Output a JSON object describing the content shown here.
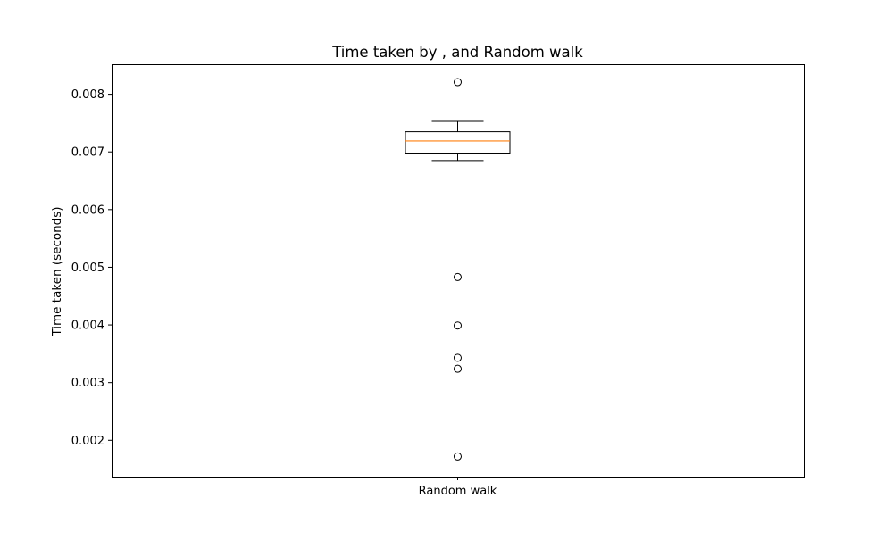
{
  "chart_data": {
    "type": "box",
    "title": "Time taken by , and Random walk",
    "xlabel": "",
    "ylabel": "Time taken (seconds)",
    "ylim": [
      0.00137,
      0.00852
    ],
    "yticks": [
      0.002,
      0.003,
      0.004,
      0.005,
      0.006,
      0.007,
      0.008
    ],
    "ytick_labels": [
      "0.002",
      "0.003",
      "0.004",
      "0.005",
      "0.006",
      "0.007",
      "0.008"
    ],
    "grid": false,
    "series": [
      {
        "category": "Random walk",
        "whisker_low": 0.00685,
        "q1": 0.00698,
        "median": 0.00719,
        "q3": 0.00735,
        "whisker_high": 0.00753,
        "outliers": [
          0.00821,
          0.00483,
          0.00399,
          0.00343,
          0.00324,
          0.00172
        ]
      }
    ],
    "colors": {
      "box": "#000000",
      "median": "#ff7f0e",
      "outlier": "#000000"
    }
  }
}
